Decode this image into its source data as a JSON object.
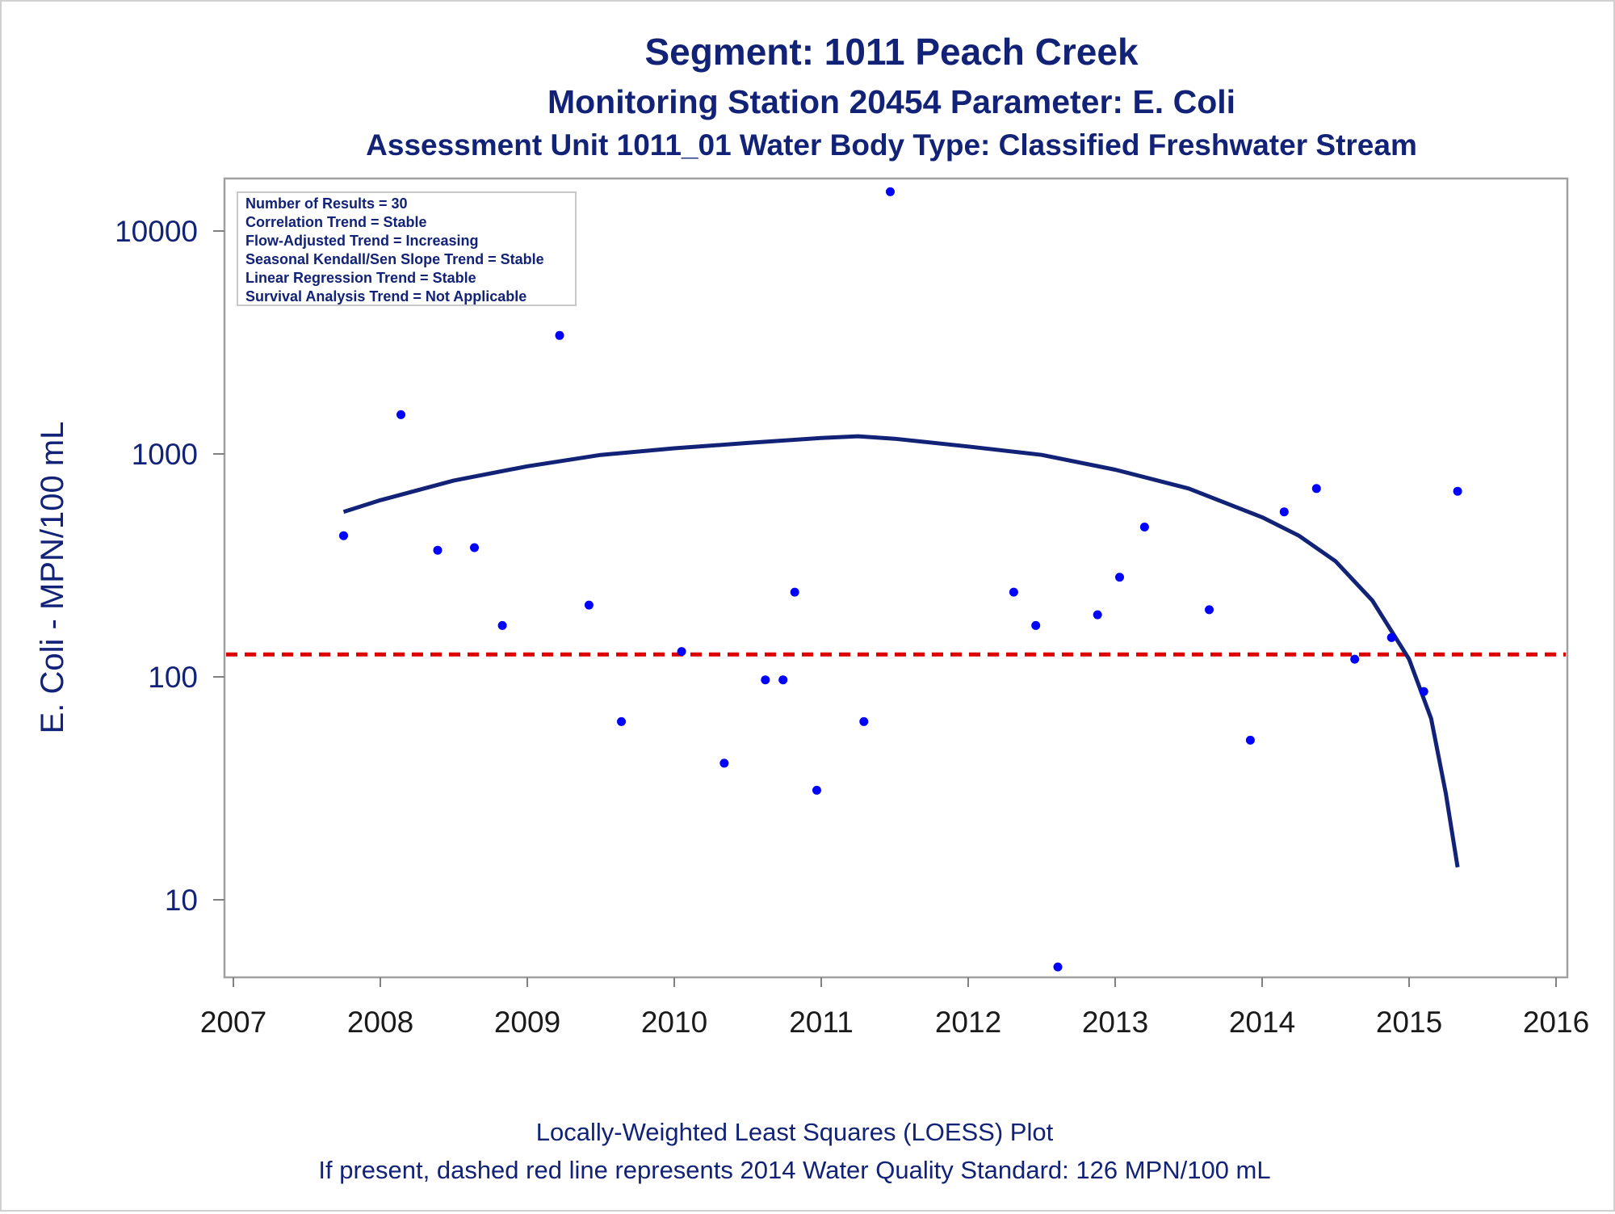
{
  "chart_data": {
    "type": "scatter",
    "title": "Segment: 1011  Peach Creek",
    "subtitle": "Monitoring Station 20454 Parameter: E. Coli",
    "subtitle2": "Assessment Unit 1011_01   Water Body Type: Classified Freshwater Stream",
    "xlabel": "",
    "ylabel": "E. Coli - MPN/100 mL",
    "x_ticks": [
      "2007",
      "2008",
      "2009",
      "2010",
      "2011",
      "2012",
      "2013",
      "2014",
      "2015",
      "2016"
    ],
    "y_ticks": [
      "10",
      "100",
      "1000",
      "10000"
    ],
    "y_scale": "log",
    "xlim": [
      2007,
      2016
    ],
    "ylim": [
      4.8,
      16500
    ],
    "grid": false,
    "stats_box": [
      "Number of Results = 30",
      "Correlation Trend = Stable",
      "Flow-Adjusted Trend = Increasing",
      "Seasonal Kendall/Sen Slope Trend = Stable",
      "Linear Regression Trend = Stable",
      "Survival Analysis Trend = Not Applicable"
    ],
    "series": [
      {
        "type": "scatter",
        "color": "#0000ff",
        "points": [
          {
            "x": 2007.75,
            "y": 430
          },
          {
            "x": 2008.14,
            "y": 1500
          },
          {
            "x": 2008.39,
            "y": 370
          },
          {
            "x": 2008.64,
            "y": 380
          },
          {
            "x": 2008.83,
            "y": 170
          },
          {
            "x": 2009.22,
            "y": 3400
          },
          {
            "x": 2009.42,
            "y": 210
          },
          {
            "x": 2009.64,
            "y": 63
          },
          {
            "x": 2010.05,
            "y": 130
          },
          {
            "x": 2010.34,
            "y": 41
          },
          {
            "x": 2010.62,
            "y": 97
          },
          {
            "x": 2010.74,
            "y": 97
          },
          {
            "x": 2010.82,
            "y": 240
          },
          {
            "x": 2010.97,
            "y": 31
          },
          {
            "x": 2011.29,
            "y": 63
          },
          {
            "x": 2011.47,
            "y": 15000
          },
          {
            "x": 2012.31,
            "y": 240
          },
          {
            "x": 2012.46,
            "y": 170
          },
          {
            "x": 2012.61,
            "y": 5
          },
          {
            "x": 2012.88,
            "y": 190
          },
          {
            "x": 2013.03,
            "y": 280
          },
          {
            "x": 2013.2,
            "y": 470
          },
          {
            "x": 2013.64,
            "y": 200
          },
          {
            "x": 2013.92,
            "y": 52
          },
          {
            "x": 2014.15,
            "y": 550
          },
          {
            "x": 2014.37,
            "y": 700
          },
          {
            "x": 2014.63,
            "y": 120
          },
          {
            "x": 2014.88,
            "y": 150
          },
          {
            "x": 2015.1,
            "y": 86
          },
          {
            "x": 2015.33,
            "y": 680
          }
        ]
      },
      {
        "type": "line",
        "color": "#112277",
        "points": [
          {
            "x": 2007.75,
            "y": 550
          },
          {
            "x": 2008.0,
            "y": 620
          },
          {
            "x": 2008.5,
            "y": 760
          },
          {
            "x": 2009.0,
            "y": 880
          },
          {
            "x": 2009.5,
            "y": 990
          },
          {
            "x": 2010.0,
            "y": 1060
          },
          {
            "x": 2010.5,
            "y": 1120
          },
          {
            "x": 2011.0,
            "y": 1180
          },
          {
            "x": 2011.25,
            "y": 1200
          },
          {
            "x": 2011.5,
            "y": 1170
          },
          {
            "x": 2012.0,
            "y": 1080
          },
          {
            "x": 2012.5,
            "y": 990
          },
          {
            "x": 2013.0,
            "y": 850
          },
          {
            "x": 2013.5,
            "y": 700
          },
          {
            "x": 2014.0,
            "y": 520
          },
          {
            "x": 2014.25,
            "y": 430
          },
          {
            "x": 2014.5,
            "y": 330
          },
          {
            "x": 2014.75,
            "y": 220
          },
          {
            "x": 2015.0,
            "y": 120
          },
          {
            "x": 2015.15,
            "y": 65
          },
          {
            "x": 2015.25,
            "y": 30
          },
          {
            "x": 2015.33,
            "y": 14
          }
        ]
      }
    ],
    "reference_line": {
      "y": 126,
      "color": "#dd0000",
      "style": "dashed"
    },
    "footnotes": [
      "Locally-Weighted Least Squares (LOESS) Plot",
      "If present, dashed red line represents 2014 Water Quality Standard: 126 MPN/100 mL"
    ]
  }
}
